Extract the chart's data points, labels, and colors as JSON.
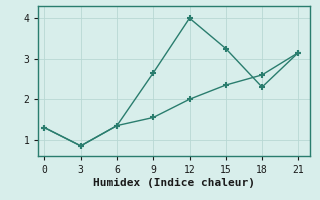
{
  "line1_x": [
    0,
    3,
    6,
    9,
    12,
    15,
    18,
    21
  ],
  "line1_y": [
    1.3,
    0.85,
    1.35,
    2.65,
    4.0,
    3.25,
    2.3,
    3.15
  ],
  "line2_x": [
    0,
    3,
    6,
    9,
    12,
    15,
    18,
    21
  ],
  "line2_y": [
    1.3,
    0.85,
    1.35,
    1.55,
    2.0,
    2.35,
    2.6,
    3.15
  ],
  "color": "#2a7d6e",
  "bg_color": "#d8eeeb",
  "xlabel": "Humidex (Indice chaleur)",
  "xlim": [
    -0.5,
    22
  ],
  "ylim": [
    0.6,
    4.3
  ],
  "xticks": [
    0,
    3,
    6,
    9,
    12,
    15,
    18,
    21
  ],
  "yticks": [
    1,
    2,
    3,
    4
  ],
  "grid_color": "#b8d8d4",
  "marker": "+",
  "markersize": 5,
  "linewidth": 1.0,
  "xlabel_fontsize": 8,
  "tick_fontsize": 7,
  "spine_color": "#2a7d6e"
}
